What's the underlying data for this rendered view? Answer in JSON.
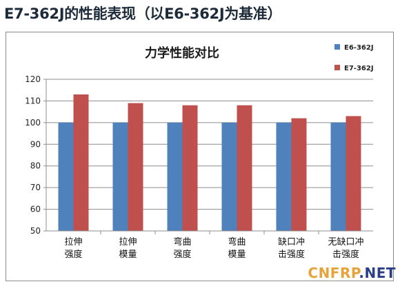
{
  "page": {
    "title": "E7-362J的性能表现（以E6-362J为基准）",
    "watermark_a": "CNFRP",
    "watermark_b": ".NET"
  },
  "colors": {
    "series_e6": "#4f81bd",
    "series_e7": "#c0504d",
    "grid": "#8c8c8c"
  },
  "chart_data": {
    "type": "bar",
    "title": "力学性能对比",
    "xlabel": "",
    "ylabel": "",
    "ylim": [
      50,
      120
    ],
    "yticks": [
      50,
      60,
      70,
      80,
      90,
      100,
      110,
      120
    ],
    "grid": true,
    "legend_position": "top-right",
    "categories": [
      [
        "拉伸",
        "强度"
      ],
      [
        "拉伸",
        "模量"
      ],
      [
        "弯曲",
        "强度"
      ],
      [
        "弯曲",
        "模量"
      ],
      [
        "缺口冲",
        "击强度"
      ],
      [
        "无缺口冲",
        "击强度"
      ]
    ],
    "series": [
      {
        "name": "E6-362J",
        "values": [
          100,
          100,
          100,
          100,
          100,
          100
        ]
      },
      {
        "name": "E7-362J",
        "values": [
          113,
          109,
          108,
          108,
          102,
          103
        ]
      }
    ]
  }
}
